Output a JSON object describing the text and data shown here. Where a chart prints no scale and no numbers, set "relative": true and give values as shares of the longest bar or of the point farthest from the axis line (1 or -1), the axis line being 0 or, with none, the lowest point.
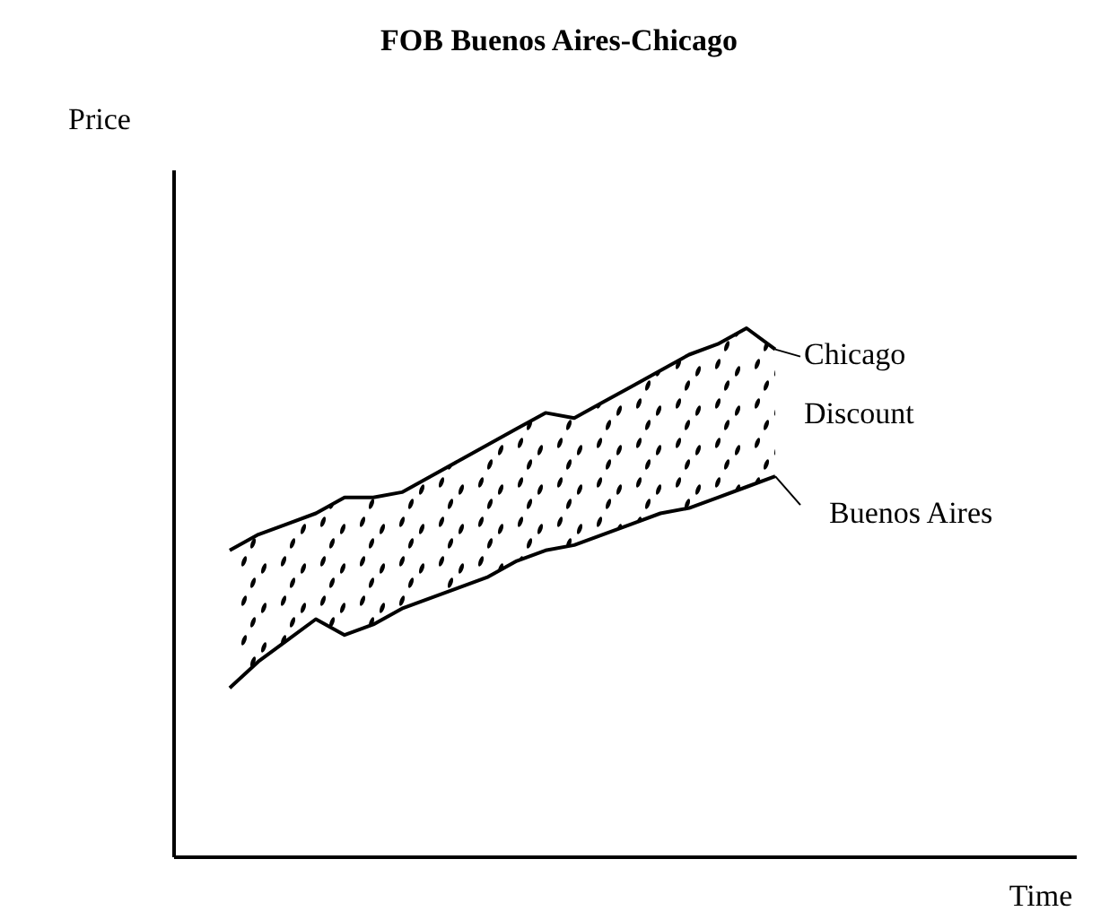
{
  "chart_data": {
    "type": "line",
    "relative": true,
    "title": "FOB Buenos Aires-Chicago",
    "categories": [
      null,
      null,
      null,
      null,
      null,
      null,
      null,
      null,
      null,
      null,
      null,
      null,
      null,
      null,
      null,
      null,
      null,
      null,
      null,
      null
    ],
    "series": [
      {
        "name": "Chicago",
        "color": "#000000",
        "values": [
          0.58,
          0.61,
          0.63,
          0.65,
          0.68,
          0.68,
          0.69,
          0.72,
          0.75,
          0.78,
          0.81,
          0.84,
          0.83,
          0.86,
          0.89,
          0.92,
          0.95,
          0.97,
          1.0,
          0.96
        ],
        "lower": [
          0.32,
          0.37,
          0.41,
          0.45,
          0.42,
          0.44,
          0.47,
          0.49,
          0.51,
          0.53,
          0.56,
          0.58,
          0.59,
          0.61,
          0.63,
          0.65,
          0.66,
          0.68,
          0.7,
          0.72
        ],
        "upper": [
          0.58,
          0.61,
          0.63,
          0.65,
          0.68,
          0.68,
          0.69,
          0.72,
          0.75,
          0.78,
          0.81,
          0.84,
          0.83,
          0.86,
          0.89,
          0.92,
          0.95,
          0.97,
          1.0,
          0.96
        ]
      },
      {
        "name": "Buenos Aires",
        "color": "#000000",
        "values": [
          0.32,
          0.37,
          0.41,
          0.45,
          0.42,
          0.44,
          0.47,
          0.49,
          0.51,
          0.53,
          0.56,
          0.58,
          0.59,
          0.61,
          0.63,
          0.65,
          0.66,
          0.68,
          0.7,
          0.72
        ]
      }
    ],
    "annotations": [
      "Discount",
      "Price",
      "Time"
    ],
    "line_style": "solid"
  }
}
